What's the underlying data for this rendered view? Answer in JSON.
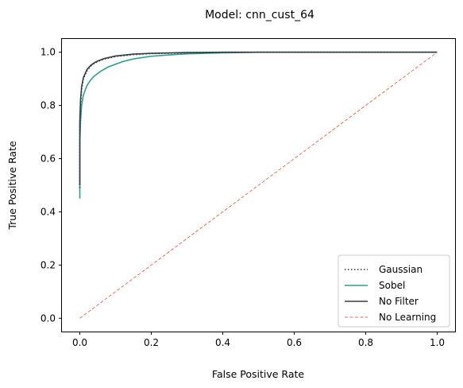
{
  "chart_data": {
    "type": "line",
    "title": "Model: cnn_cust_64",
    "xlabel": "False Positive Rate",
    "ylabel": "True Positive Rate",
    "xlim": [
      -0.05,
      1.05
    ],
    "ylim": [
      -0.05,
      1.05
    ],
    "xticks": [
      0.0,
      0.2,
      0.4,
      0.6,
      0.8,
      1.0
    ],
    "yticks": [
      0.0,
      0.2,
      0.4,
      0.6,
      0.8,
      1.0
    ],
    "xtick_labels": [
      "0.0",
      "0.2",
      "0.4",
      "0.6",
      "0.8",
      "1.0"
    ],
    "ytick_labels": [
      "0.0",
      "0.2",
      "0.4",
      "0.6",
      "0.8",
      "1.0"
    ],
    "grid": false,
    "legend_position": "lower-right",
    "series": [
      {
        "name": "Gaussian",
        "style": "dotted",
        "color": "#2b3a4a",
        "x": [
          0.0,
          0.0,
          0.002,
          0.005,
          0.01,
          0.02,
          0.03,
          0.04,
          0.05,
          0.07,
          0.1,
          0.15,
          0.2,
          0.3,
          0.4,
          0.6,
          1.0
        ],
        "y": [
          0.49,
          0.72,
          0.8,
          0.86,
          0.9,
          0.93,
          0.947,
          0.958,
          0.965,
          0.975,
          0.984,
          0.991,
          0.995,
          0.998,
          1.0,
          1.0,
          1.0
        ]
      },
      {
        "name": "Sobel",
        "style": "solid",
        "color": "#2a9d8f",
        "x": [
          0.0,
          0.0,
          0.002,
          0.005,
          0.01,
          0.02,
          0.03,
          0.04,
          0.05,
          0.06,
          0.08,
          0.1,
          0.12,
          0.15,
          0.2,
          0.25,
          0.3,
          0.4,
          0.5,
          1.0
        ],
        "y": [
          0.45,
          0.66,
          0.74,
          0.8,
          0.84,
          0.875,
          0.895,
          0.91,
          0.92,
          0.93,
          0.945,
          0.955,
          0.965,
          0.975,
          0.985,
          0.99,
          0.994,
          0.998,
          1.0,
          1.0
        ]
      },
      {
        "name": "No Filter",
        "style": "solid",
        "color": "#3d3d3d",
        "x": [
          0.0,
          0.0,
          0.002,
          0.005,
          0.01,
          0.02,
          0.03,
          0.04,
          0.05,
          0.07,
          0.1,
          0.15,
          0.2,
          0.3,
          0.4,
          0.6,
          1.0
        ],
        "y": [
          0.5,
          0.74,
          0.82,
          0.87,
          0.905,
          0.935,
          0.95,
          0.96,
          0.967,
          0.977,
          0.986,
          0.993,
          0.996,
          0.999,
          1.0,
          1.0,
          1.0
        ]
      },
      {
        "name": "No Learning",
        "style": "dashed",
        "color": "#e76f51",
        "x": [
          0.0,
          1.0
        ],
        "y": [
          0.0,
          1.0
        ]
      }
    ]
  }
}
